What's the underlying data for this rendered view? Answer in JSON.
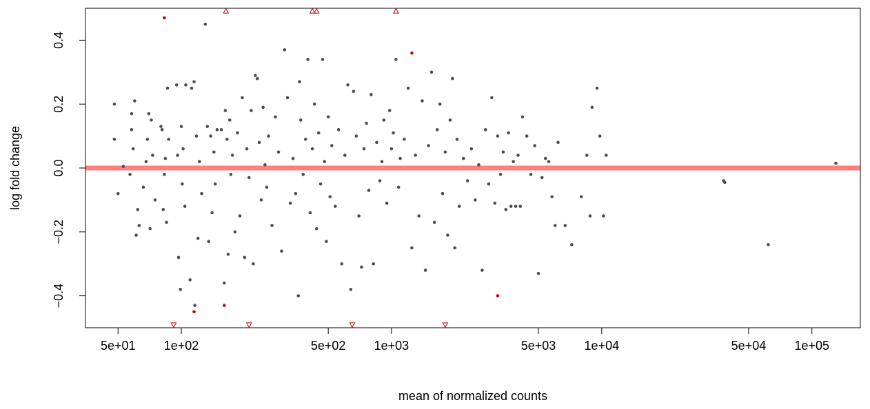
{
  "chart_data": {
    "type": "scatter",
    "title": "",
    "xlabel": "mean of normalized counts",
    "ylabel": "log fold change",
    "x_scale": "log10",
    "xlim": [
      35,
      170000
    ],
    "ylim": [
      -0.5,
      0.5
    ],
    "x_ticks": [
      {
        "value": 50,
        "label": "5e+01"
      },
      {
        "value": 100,
        "label": "1e+02"
      },
      {
        "value": 500,
        "label": "5e+02"
      },
      {
        "value": 1000,
        "label": "1e+03"
      },
      {
        "value": 5000,
        "label": "5e+03"
      },
      {
        "value": 10000,
        "label": "1e+04"
      },
      {
        "value": 50000,
        "label": "5e+04"
      },
      {
        "value": 100000,
        "label": "1e+05"
      }
    ],
    "y_ticks": [
      {
        "value": -0.4,
        "label": "−0.4"
      },
      {
        "value": -0.2,
        "label": "−0.2"
      },
      {
        "value": 0.0,
        "label": "0.0"
      },
      {
        "value": 0.2,
        "label": "0.2"
      },
      {
        "value": 0.4,
        "label": "0.4"
      }
    ],
    "reference_line": {
      "y": 0,
      "color": "#ff7f7f"
    },
    "colors": {
      "non_significant": "#4d4d4d",
      "significant": "#cc0000"
    },
    "series": [
      {
        "marker": "point",
        "color": "#4d4d4d",
        "points": [
          [
            48,
            0.2
          ],
          [
            48,
            0.09
          ],
          [
            50,
            -0.08
          ],
          [
            53,
            0.005
          ],
          [
            58,
            0.12
          ],
          [
            58,
            0.17
          ],
          [
            60,
            0.21
          ],
          [
            61,
            -0.21
          ],
          [
            63,
            -0.18
          ],
          [
            62,
            -0.13
          ],
          [
            59,
            0.06
          ],
          [
            57,
            -0.02
          ],
          [
            70,
            0.17
          ],
          [
            72,
            0.15
          ],
          [
            71,
            -0.19
          ],
          [
            69,
            0.09
          ],
          [
            73,
            0.04
          ],
          [
            75,
            -0.1
          ],
          [
            66,
            -0.06
          ],
          [
            68,
            0.02
          ],
          [
            80,
            0.13
          ],
          [
            81,
            0.12
          ],
          [
            82,
            -0.13
          ],
          [
            84,
            0.03
          ],
          [
            85,
            -0.17
          ],
          [
            86,
            0.25
          ],
          [
            87,
            0.09
          ],
          [
            83,
            -0.02
          ],
          [
            95,
            0.26
          ],
          [
            97,
            -0.28
          ],
          [
            99,
            -0.38
          ],
          [
            100,
            0.13
          ],
          [
            102,
            0.06
          ],
          [
            104,
            -0.12
          ],
          [
            105,
            0.26
          ],
          [
            96,
            0.04
          ],
          [
            101,
            -0.05
          ],
          [
            110,
            -0.35
          ],
          [
            112,
            0.25
          ],
          [
            115,
            0.27
          ],
          [
            116,
            -0.43
          ],
          [
            118,
            0.1
          ],
          [
            120,
            -0.22
          ],
          [
            122,
            0.02
          ],
          [
            125,
            -0.08
          ],
          [
            130,
            0.45
          ],
          [
            133,
            0.13
          ],
          [
            135,
            -0.23
          ],
          [
            138,
            0.1
          ],
          [
            140,
            -0.14
          ],
          [
            143,
            0.05
          ],
          [
            145,
            -0.05
          ],
          [
            148,
            0.12
          ],
          [
            155,
            0.12
          ],
          [
            160,
            -0.36
          ],
          [
            162,
            0.18
          ],
          [
            165,
            0.09
          ],
          [
            167,
            -0.27
          ],
          [
            170,
            0.15
          ],
          [
            172,
            -0.02
          ],
          [
            175,
            0.04
          ],
          [
            180,
            -0.2
          ],
          [
            185,
            0.11
          ],
          [
            190,
            -0.15
          ],
          [
            195,
            0.22
          ],
          [
            200,
            -0.28
          ],
          [
            205,
            0.06
          ],
          [
            210,
            -0.03
          ],
          [
            215,
            0.18
          ],
          [
            220,
            -0.3
          ],
          [
            225,
            0.29
          ],
          [
            230,
            0.28
          ],
          [
            235,
            0.08
          ],
          [
            240,
            -0.1
          ],
          [
            245,
            0.19
          ],
          [
            250,
            0.01
          ],
          [
            255,
            -0.06
          ],
          [
            260,
            0.1
          ],
          [
            270,
            -0.18
          ],
          [
            280,
            0.16
          ],
          [
            290,
            0.05
          ],
          [
            300,
            -0.26
          ],
          [
            310,
            0.37
          ],
          [
            320,
            0.22
          ],
          [
            330,
            -0.11
          ],
          [
            340,
            0.03
          ],
          [
            350,
            -0.08
          ],
          [
            360,
            -0.4
          ],
          [
            365,
            0.27
          ],
          [
            370,
            0.15
          ],
          [
            380,
            -0.02
          ],
          [
            390,
            0.09
          ],
          [
            400,
            0.34
          ],
          [
            410,
            -0.14
          ],
          [
            420,
            0.06
          ],
          [
            430,
            0.2
          ],
          [
            440,
            -0.19
          ],
          [
            450,
            0.11
          ],
          [
            460,
            -0.05
          ],
          [
            470,
            0.34
          ],
          [
            480,
            0.02
          ],
          [
            490,
            -0.23
          ],
          [
            500,
            0.16
          ],
          [
            510,
            -0.09
          ],
          [
            520,
            0.07
          ],
          [
            540,
            -0.12
          ],
          [
            560,
            0.12
          ],
          [
            580,
            -0.3
          ],
          [
            600,
            0.04
          ],
          [
            620,
            0.26
          ],
          [
            640,
            -0.38
          ],
          [
            660,
            0.24
          ],
          [
            680,
            0.1
          ],
          [
            700,
            -0.15
          ],
          [
            720,
            -0.31
          ],
          [
            740,
            0.06
          ],
          [
            760,
            0.14
          ],
          [
            780,
            -0.07
          ],
          [
            800,
            0.23
          ],
          [
            820,
            -0.3
          ],
          [
            850,
            0.08
          ],
          [
            880,
            -0.04
          ],
          [
            900,
            0.02
          ],
          [
            920,
            0.15
          ],
          [
            950,
            -0.11
          ],
          [
            980,
            0.18
          ],
          [
            1000,
            0.06
          ],
          [
            1020,
            0.11
          ],
          [
            1050,
            0.34
          ],
          [
            1080,
            -0.06
          ],
          [
            1100,
            0.03
          ],
          [
            1150,
            0.09
          ],
          [
            1200,
            0.25
          ],
          [
            1250,
            -0.25
          ],
          [
            1300,
            0.04
          ],
          [
            1350,
            -0.15
          ],
          [
            1400,
            0.21
          ],
          [
            1450,
            -0.32
          ],
          [
            1500,
            0.07
          ],
          [
            1550,
            0.3
          ],
          [
            1600,
            -0.17
          ],
          [
            1650,
            0.12
          ],
          [
            1700,
            0.2
          ],
          [
            1750,
            -0.08
          ],
          [
            1800,
            0.05
          ],
          [
            1850,
            -0.21
          ],
          [
            1900,
            0.15
          ],
          [
            1950,
            0.28
          ],
          [
            2000,
            -0.25
          ],
          [
            2050,
            0.09
          ],
          [
            2100,
            -0.12
          ],
          [
            2200,
            0.03
          ],
          [
            2300,
            -0.04
          ],
          [
            2400,
            0.06
          ],
          [
            2500,
            -0.1
          ],
          [
            2600,
            0.01
          ],
          [
            2700,
            -0.32
          ],
          [
            2800,
            0.12
          ],
          [
            2900,
            -0.05
          ],
          [
            3000,
            0.22
          ],
          [
            3100,
            -0.11
          ],
          [
            3200,
            0.1
          ],
          [
            3300,
            -0.02
          ],
          [
            3400,
            0.05
          ],
          [
            3500,
            -0.13
          ],
          [
            3600,
            0.11
          ],
          [
            3700,
            -0.12
          ],
          [
            3800,
            0.02
          ],
          [
            3900,
            -0.12
          ],
          [
            4000,
            0.04
          ],
          [
            4100,
            -0.12
          ],
          [
            4200,
            0.16
          ],
          [
            4400,
            0.1
          ],
          [
            4600,
            -0.02
          ],
          [
            4800,
            0.07
          ],
          [
            5000,
            -0.33
          ],
          [
            5200,
            -0.03
          ],
          [
            5400,
            0.03
          ],
          [
            5600,
            0.02
          ],
          [
            5800,
            -0.09
          ],
          [
            6000,
            -0.18
          ],
          [
            6200,
            0.08
          ],
          [
            6700,
            -0.18
          ],
          [
            7200,
            -0.24
          ],
          [
            8000,
            -0.09
          ],
          [
            8500,
            0.04
          ],
          [
            8800,
            -0.15
          ],
          [
            9000,
            0.19
          ],
          [
            9500,
            0.25
          ],
          [
            9800,
            0.1
          ],
          [
            10200,
            -0.15
          ],
          [
            10500,
            0.04
          ],
          [
            38000,
            -0.04
          ],
          [
            38500,
            -0.045
          ],
          [
            62000,
            -0.24
          ],
          [
            130000,
            0.015
          ]
        ]
      },
      {
        "marker": "point",
        "color": "#cc0000",
        "points": [
          [
            83,
            0.47
          ],
          [
            115,
            -0.45
          ],
          [
            160,
            -0.43
          ],
          [
            1250,
            0.36
          ],
          [
            3200,
            -0.4
          ]
        ]
      },
      {
        "marker": "triangle-up",
        "color": "#cc0000",
        "points": [
          [
            163,
            0.49
          ],
          [
            420,
            0.49
          ],
          [
            440,
            0.49
          ],
          [
            1050,
            0.49
          ]
        ]
      },
      {
        "marker": "triangle-down",
        "color": "#cc0000",
        "points": [
          [
            92,
            -0.49
          ],
          [
            210,
            -0.49
          ],
          [
            650,
            -0.49
          ],
          [
            1800,
            -0.49
          ]
        ]
      }
    ]
  }
}
